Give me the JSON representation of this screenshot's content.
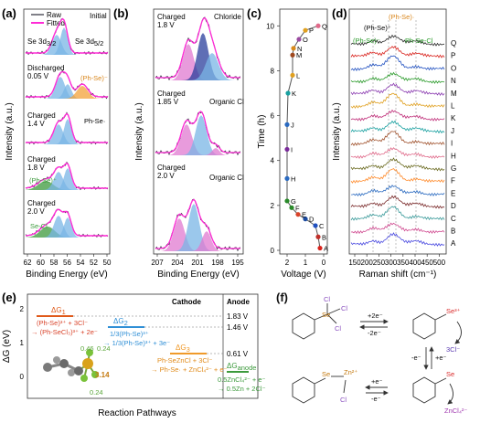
{
  "panel_labels": {
    "a": "(a)",
    "b": "(b)",
    "c": "(c)",
    "d": "(d)",
    "e": "(e)",
    "f": "(f)"
  },
  "panel_a": {
    "legend": [
      "Raw",
      "Fitted"
    ],
    "ylabel": "Intensity (a.u.)",
    "xlabel": "Binding Energy (eV)",
    "xticks": [
      "62",
      "60",
      "58",
      "56",
      "54",
      "52",
      "50"
    ],
    "spectra": [
      {
        "label_line1": "",
        "label_line2": "Initial",
        "peak_labels": [
          "Se 3d",
          "Se 3d"
        ],
        "subscripts": [
          "3/2",
          "5/2"
        ]
      },
      {
        "label_line1": "Discharged",
        "label_line2": "0.05 V",
        "peak_labels": [
          "(Ph-Se)⁻"
        ]
      },
      {
        "label_line1": "Charged",
        "label_line2": "1.4 V",
        "peak_labels": [
          "Ph-Se·"
        ]
      },
      {
        "label_line1": "Charged",
        "label_line2": "1.8 V",
        "peak_labels": [
          "(Ph-Se)⁺"
        ]
      },
      {
        "label_line1": "Charged",
        "label_line2": "2.0 V",
        "peak_labels": [
          "Se-Cl"
        ]
      }
    ]
  },
  "panel_b": {
    "ylabel": "Intensity (a.u.)",
    "xlabel": "Binding Energy (eV)",
    "xticks": [
      "207",
      "204",
      "201",
      "198",
      "195"
    ],
    "spectra": [
      {
        "label_line1": "Charged",
        "label_line2": "1.8 V",
        "tag": "Chloride"
      },
      {
        "label_line1": "Charged",
        "label_line2": "1.85 V",
        "tag": "Organic Cl"
      },
      {
        "label_line1": "Charged",
        "label_line2": "2.0 V",
        "tag": "Organic Cl"
      }
    ]
  },
  "panel_c": {
    "ylabel": "Time (h)",
    "xlabel": "Voltage (V)",
    "xticks": [
      "2",
      "1",
      "0"
    ],
    "yticks": [
      "0",
      "2",
      "4",
      "6",
      "8",
      "10"
    ],
    "points": [
      "A",
      "B",
      "C",
      "D",
      "E",
      "F",
      "G",
      "H",
      "I",
      "J",
      "K",
      "L",
      "M",
      "N",
      "O",
      "P",
      "Q"
    ]
  },
  "panel_d": {
    "ylabel": "Intensity (a.u.)",
    "xlabel": "Raman shift (cm⁻¹)",
    "xticks": [
      "150",
      "200",
      "250",
      "300",
      "350",
      "400",
      "450",
      "500"
    ],
    "annotations": [
      "(Ph-Se)⁻",
      "(Ph-Se)⁺",
      "(Ph-Se)·",
      "Ph-Se-Cl"
    ],
    "traces": [
      "Q",
      "P",
      "O",
      "N",
      "M",
      "L",
      "K",
      "J",
      "I",
      "H",
      "G",
      "F",
      "E",
      "D",
      "C",
      "B",
      "A"
    ]
  },
  "panel_e": {
    "ylabel": "ΔG (eV)",
    "xlabel": "Reaction Pathways",
    "col_cathode": "Cathode",
    "col_anode": "Anode",
    "levels": [
      "1.83 V",
      "1.46 V",
      "0.61 V"
    ],
    "dG": [
      "ΔG",
      "ΔG",
      "ΔG",
      "ΔG"
    ],
    "dG_sub": [
      "1",
      "2",
      "3",
      "anode"
    ],
    "reactions": [
      "(Ph-Se)³⁺ + 3Cl⁻",
      "→ (Ph-SeCl₃)³⁺ + 2e⁻",
      "1/3(Ph-Se)³⁺",
      "→ 1/3(Ph-Se)³⁺ + 3e⁻",
      "Ph-SeZnCl + 3Cl⁻",
      "→ Ph-Se· + ZnCl₄²⁻ + e⁻",
      "0.5ZnCl₄²⁻ + e⁻",
      "→ 0.5Zn + 2Cl⁻"
    ],
    "yticks": [
      "2",
      "1",
      "0"
    ],
    "bond_labels": [
      "0.46",
      "0.24",
      "3.14",
      "0.24"
    ]
  },
  "panel_f": {
    "labels": [
      "Cl",
      "Cl",
      "Cl",
      "Se",
      "Se³⁺",
      "3Cl⁻",
      "Se",
      "Zn²⁺",
      "Cl",
      "Se",
      "ZnCl₄²⁻"
    ],
    "arrows": [
      "+2e⁻",
      "-2e⁻",
      "-e⁻",
      "+e⁻",
      "+e⁻",
      "-e⁻"
    ]
  },
  "colors": {
    "raw": "#2b2b3a",
    "fitted": "#ff2bd6",
    "peak_blue": "#7ab6e6",
    "peak_orange": "#f3a23a",
    "peak_green": "#3c9a3c",
    "peak_pink": "#e07ad0",
    "peak_navy": "#2a3d9c"
  }
}
